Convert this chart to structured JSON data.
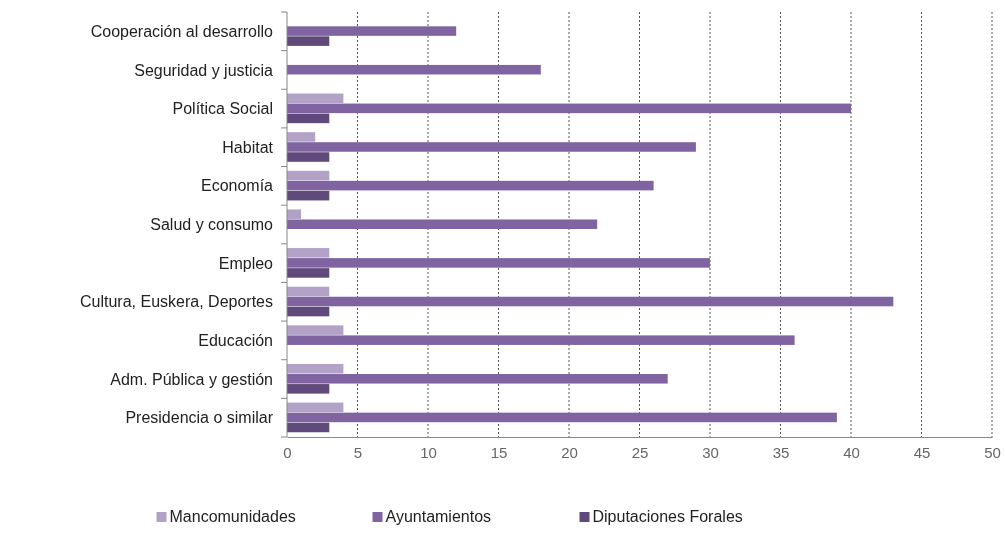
{
  "chart_data": {
    "type": "bar",
    "orientation": "horizontal",
    "categories": [
      "Cooperación al desarrollo",
      "Seguridad y justicia",
      "Política Social",
      "Habitat",
      "Economía",
      "Salud y consumo",
      "Empleo",
      "Cultura, Euskera, Deportes",
      "Educación",
      "Adm. Pública y gestión",
      "Presidencia o similar"
    ],
    "series": [
      {
        "name": "Mancomunidades",
        "color": "#b3a2c7",
        "values": [
          null,
          null,
          4,
          2,
          3,
          1,
          3,
          3,
          4,
          4,
          4
        ]
      },
      {
        "name": "Ayuntamientos",
        "color": "#8064a2",
        "values": [
          12,
          18,
          40,
          29,
          26,
          22,
          30,
          43,
          36,
          27,
          39
        ]
      },
      {
        "name": "Diputaciones Forales",
        "color": "#604a7b",
        "values": [
          3,
          null,
          3,
          3,
          3,
          null,
          3,
          3,
          null,
          3,
          3
        ]
      }
    ],
    "xlim": [
      0,
      50
    ],
    "xticks": [
      0,
      5,
      10,
      15,
      20,
      25,
      30,
      35,
      40,
      45,
      50
    ],
    "grid": "x",
    "legend": "bottom"
  }
}
